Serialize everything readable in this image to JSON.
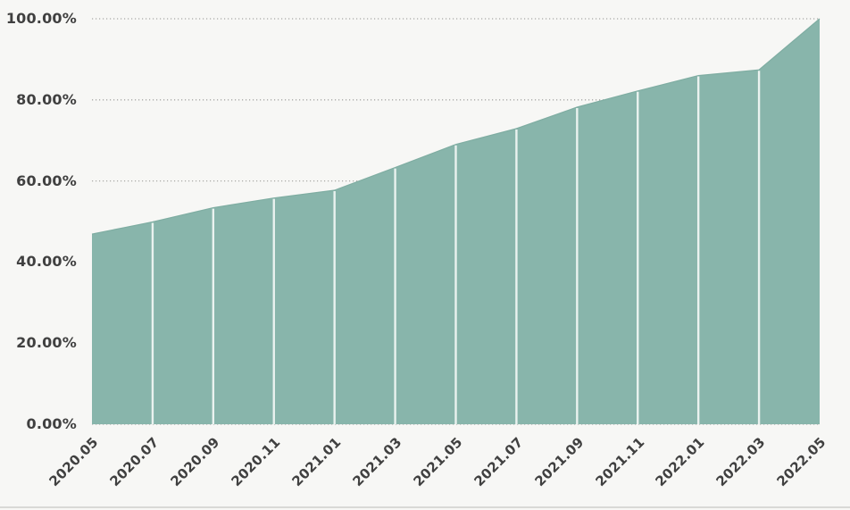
{
  "colors": {
    "background": "#f7f7f5",
    "area_fill": "#88b5ab",
    "area_edge": "#7fada2",
    "separator": "#eaf2ef",
    "gridline": "#a9a9a6",
    "axis_text": "#404040",
    "bottom_rule": "#d9d9d6"
  },
  "chart_data": {
    "type": "area",
    "title": "",
    "xlabel": "",
    "ylabel": "",
    "categories": [
      "2020.05",
      "2020.07",
      "2020.09",
      "2020.11",
      "2021.01",
      "2021.03",
      "2021.05",
      "2021.07",
      "2021.09",
      "2021.11",
      "2022.01",
      "2022.03",
      "2022.05"
    ],
    "values": [
      46.9,
      49.9,
      53.4,
      55.8,
      57.7,
      63.3,
      69.0,
      72.9,
      78.2,
      82.2,
      86.0,
      87.4,
      100.0
    ],
    "unit": "%",
    "ylim": [
      0,
      100
    ],
    "y_ticks": [
      {
        "label": "100.00%",
        "value": 100
      },
      {
        "label": "80.00%",
        "value": 80
      },
      {
        "label": "60.00%",
        "value": 60
      },
      {
        "label": "40.00%",
        "value": 40
      },
      {
        "label": "20.00%",
        "value": 20
      },
      {
        "label": "0.00%",
        "value": 0
      }
    ],
    "grid": "horizontal-dotted",
    "legend_position": "none",
    "x_tick_rotation": -45,
    "column_separators": "white vertical lines at each data point inside the filled area"
  }
}
